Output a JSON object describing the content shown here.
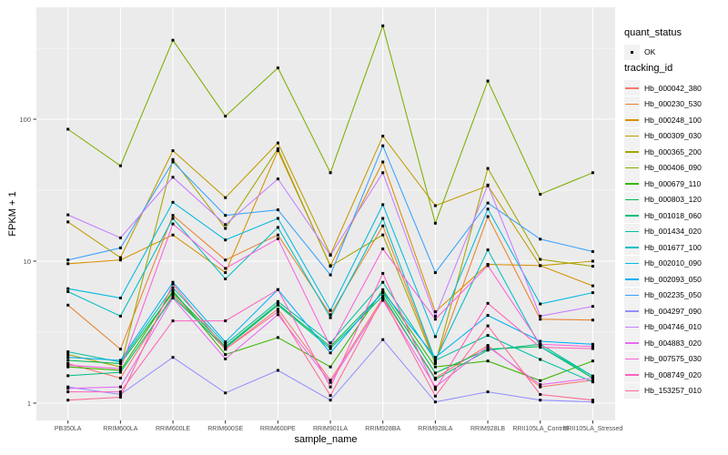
{
  "figure": {
    "background": "#FFFFFF",
    "panel_background": "#EBEBEB",
    "grid_color": "#FFFFFF",
    "axis_tick_color": "#333333",
    "tick_label_color": "#4D4D4D",
    "point_color": "#000000",
    "legend_key_background": "#F2F2F2"
  },
  "legend": {
    "quant_title": "quant_status",
    "quant_items": [
      {
        "label": "OK",
        "marker": "black-point"
      }
    ],
    "tracking_title": "tracking_id"
  },
  "chart_data": {
    "type": "line",
    "title": "",
    "xlabel": "sample_name",
    "ylabel": "FPKM + 1",
    "y_scale": "log10",
    "y_ticks": [
      1,
      10,
      100
    ],
    "y_minor_ticks": [
      3.162,
      31.62,
      316.2
    ],
    "ylim": [
      1,
      614
    ],
    "grid": true,
    "legend_position": "right",
    "point_marker": "small-black-square",
    "categories": [
      "PB350LA",
      "RRIM600LA",
      "RRIM600LE",
      "RRIM600SE",
      "RRIM600PE",
      "RRIM901LA",
      "RRIM928BA",
      "RRIM928LA",
      "RRIM928LB",
      "RRII105LA_Control",
      "RRII105LA_Stressed"
    ],
    "series": [
      {
        "name": "Hb_000042_380",
        "color": "#F8766D",
        "values": [
          1.9,
          1.5,
          5.8,
          2.4,
          4.6,
          1.45,
          5.5,
          1.5,
          2.55,
          1.3,
          1.45
        ]
      },
      {
        "name": "Hb_000230_530",
        "color": "#EA8331",
        "values": [
          4.9,
          2.4,
          21,
          10.2,
          15.3,
          4.2,
          17.7,
          1.95,
          20.6,
          3.9,
          3.85
        ]
      },
      {
        "name": "Hb_000248_100",
        "color": "#D89000",
        "values": [
          9.6,
          10.2,
          15.3,
          8.3,
          60,
          9.3,
          50,
          4.4,
          9.5,
          9.3,
          6.7
        ]
      },
      {
        "name": "Hb_000309_030",
        "color": "#C09B00",
        "values": [
          18.9,
          10.6,
          60,
          28,
          68,
          11.1,
          76,
          24.6,
          34,
          9.3,
          10.0
        ]
      },
      {
        "name": "Hb_000365_200",
        "color": "#A3A500",
        "values": [
          2.2,
          1.8,
          52,
          17,
          62,
          9.2,
          15.3,
          1.9,
          45,
          10.3,
          9.2
        ]
      },
      {
        "name": "Hb_000406_090",
        "color": "#7CAE00",
        "values": [
          85,
          47,
          360,
          105,
          230,
          42,
          455,
          18.5,
          186,
          29.6,
          42
        ]
      },
      {
        "name": "Hb_000679_110",
        "color": "#39B600",
        "values": [
          1.8,
          1.7,
          6.2,
          2.2,
          2.9,
          1.8,
          6.3,
          1.8,
          1.98,
          1.44,
          1.98
        ]
      },
      {
        "name": "Hb_000803_120",
        "color": "#00BB4E",
        "values": [
          2.0,
          1.9,
          6.0,
          2.5,
          5.0,
          2.5,
          6.0,
          1.63,
          2.4,
          2.5,
          1.5
        ]
      },
      {
        "name": "Hb_001018_060",
        "color": "#00BF7D",
        "values": [
          1.56,
          1.65,
          5.6,
          2.45,
          4.9,
          2.42,
          5.7,
          1.47,
          2.36,
          2.6,
          1.55
        ]
      },
      {
        "name": "Hb_001434_020",
        "color": "#00C1A3",
        "values": [
          2.3,
          1.95,
          6.5,
          2.6,
          5.2,
          2.66,
          7.1,
          2.0,
          3.0,
          2.03,
          1.41
        ]
      },
      {
        "name": "Hb_001677_100",
        "color": "#00BFC4",
        "values": [
          6.1,
          4.1,
          20,
          7.5,
          17.3,
          4.0,
          20,
          2.0,
          12,
          2.5,
          1.55
        ]
      },
      {
        "name": "Hb_002010_090",
        "color": "#00BAE0",
        "values": [
          6.4,
          5.5,
          26,
          14.1,
          20,
          4.5,
          25,
          2.94,
          23.3,
          5.0,
          6.0
        ]
      },
      {
        "name": "Hb_002093_050",
        "color": "#00B0F6",
        "values": [
          2.1,
          2.0,
          7.1,
          2.7,
          6.3,
          2.26,
          6.1,
          2.1,
          4.15,
          2.73,
          2.6
        ]
      },
      {
        "name": "Hb_002235_050",
        "color": "#35A2FF",
        "values": [
          10.2,
          12.4,
          50,
          21,
          23,
          8.0,
          65,
          8.3,
          25.7,
          14.3,
          11.7
        ]
      },
      {
        "name": "Hb_004297_090",
        "color": "#9590FF",
        "values": [
          1.3,
          1.15,
          2.1,
          1.18,
          1.7,
          1.05,
          2.8,
          1.02,
          1.2,
          1.05,
          1.02
        ]
      },
      {
        "name": "Hb_004746_010",
        "color": "#C77CFF",
        "values": [
          21.2,
          14.6,
          39,
          18.1,
          38,
          11.0,
          42,
          4.1,
          34.4,
          4.1,
          4.8
        ]
      },
      {
        "name": "Hb_004883_020",
        "color": "#E76BF3",
        "values": [
          1.27,
          1.3,
          5.5,
          2.05,
          4.2,
          1.4,
          5.3,
          1.3,
          2.5,
          1.35,
          1.5
        ]
      },
      {
        "name": "Hb_007575_030",
        "color": "#FA62DB",
        "values": [
          1.85,
          1.75,
          18.3,
          8.9,
          14.4,
          2.5,
          12.2,
          3.9,
          9.3,
          2.6,
          2.5
        ]
      },
      {
        "name": "Hb_008749_020",
        "color": "#FF62BC",
        "values": [
          1.2,
          1.2,
          3.8,
          3.8,
          6.3,
          1.3,
          8.2,
          1.25,
          5.05,
          2.47,
          2.42
        ]
      },
      {
        "name": "Hb_153257_010",
        "color": "#FF6A98",
        "values": [
          1.05,
          1.1,
          6.9,
          2.4,
          4.4,
          1.13,
          5.5,
          1.12,
          3.5,
          1.15,
          1.05
        ]
      }
    ]
  }
}
